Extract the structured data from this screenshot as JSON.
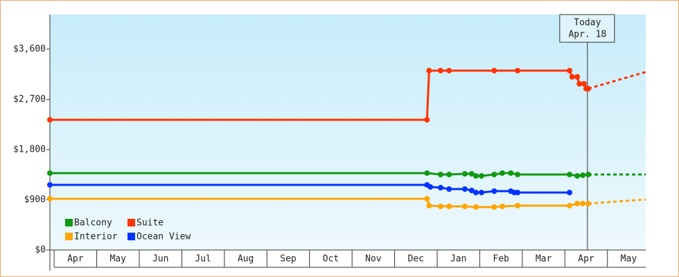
{
  "chart_data": {
    "type": "line",
    "xlim": [
      -0.1,
      13.9
    ],
    "xticks": [
      {
        "value": 0.5,
        "label": "Apr"
      },
      {
        "value": 1.5,
        "label": "May"
      },
      {
        "value": 2.5,
        "label": "Jun"
      },
      {
        "value": 3.5,
        "label": "Jul"
      },
      {
        "value": 4.5,
        "label": "Aug"
      },
      {
        "value": 5.5,
        "label": "Sep"
      },
      {
        "value": 6.5,
        "label": "Oct"
      },
      {
        "value": 7.5,
        "label": "Nov"
      },
      {
        "value": 8.5,
        "label": "Dec"
      },
      {
        "value": 9.5,
        "label": "Jan"
      },
      {
        "value": 10.5,
        "label": "Feb"
      },
      {
        "value": 11.5,
        "label": "Mar"
      },
      {
        "value": 12.5,
        "label": "Apr"
      },
      {
        "value": 13.5,
        "label": "May"
      }
    ],
    "ylim": [
      0,
      4220
    ],
    "yticks": [
      {
        "value": 0,
        "label": "$0"
      },
      {
        "value": 900,
        "label": "$900"
      },
      {
        "value": 1800,
        "label": "$1,800"
      },
      {
        "value": 2700,
        "label": "$2,700"
      },
      {
        "value": 3600,
        "label": "$3,600"
      }
    ],
    "legend": "bottom-left",
    "today": {
      "x": 12.53,
      "lines": [
        "Today",
        "Apr. 18"
      ]
    },
    "forecast_x": [
      12.55,
      13.9
    ],
    "series": [
      {
        "name": "Balcony",
        "color": "#119911",
        "x": [
          -0.1,
          8.76,
          9.08,
          9.28,
          9.65,
          9.81,
          9.91,
          10.04,
          10.34,
          10.53,
          10.73,
          10.89,
          12.11,
          12.29,
          12.42,
          12.55
        ],
        "values": [
          1378,
          1378,
          1353,
          1353,
          1365,
          1365,
          1328,
          1328,
          1353,
          1378,
          1378,
          1353,
          1353,
          1328,
          1340,
          1353
        ],
        "forecast": [
          1353,
          1353
        ]
      },
      {
        "name": "Suite",
        "color": "#ff3300",
        "x": [
          -0.1,
          8.76,
          8.81,
          9.08,
          9.28,
          10.34,
          10.89,
          12.11,
          12.17,
          12.29,
          12.34,
          12.45,
          12.5,
          12.55
        ],
        "values": [
          2334,
          2334,
          3215,
          3215,
          3215,
          3215,
          3215,
          3215,
          3103,
          3103,
          2979,
          2979,
          2892,
          2892
        ],
        "forecast": [
          2892,
          3190
        ]
      },
      {
        "name": "Interior",
        "color": "#ffa500",
        "x": [
          -0.1,
          8.76,
          8.81,
          9.08,
          9.28,
          9.65,
          9.91,
          10.34,
          10.53,
          10.89,
          12.11,
          12.29,
          12.42,
          12.55
        ],
        "values": [
          919,
          919,
          795,
          782,
          782,
          782,
          770,
          770,
          782,
          795,
          795,
          832,
          832,
          832
        ],
        "forecast": [
          832,
          906
        ]
      },
      {
        "name": "Ocean View",
        "color": "#0033ff",
        "x": [
          -0.1,
          8.76,
          8.84,
          9.08,
          9.28,
          9.65,
          9.81,
          9.91,
          10.04,
          10.34,
          10.73,
          10.81,
          10.89,
          12.11
        ],
        "values": [
          1167,
          1167,
          1130,
          1117,
          1092,
          1092,
          1067,
          1030,
          1030,
          1055,
          1055,
          1030,
          1030,
          1030
        ]
      }
    ]
  }
}
